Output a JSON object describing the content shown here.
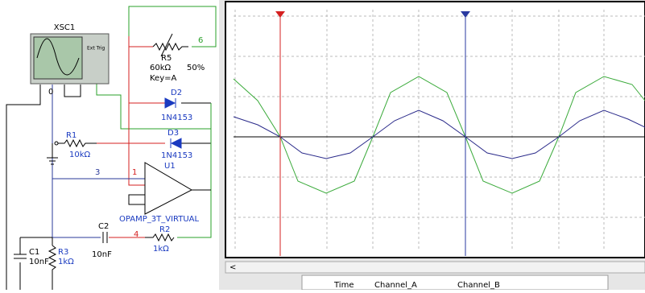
{
  "schematic": {
    "scope": {
      "label": "XSC1",
      "trigger": "Ext Trig"
    },
    "r5": {
      "name": "R5",
      "value": "60kΩ",
      "setting": "50%",
      "key": "Key=A",
      "node": "6"
    },
    "d2": {
      "name": "D2",
      "model": "1N4153"
    },
    "d3": {
      "name": "D3",
      "model": "1N4153"
    },
    "r1": {
      "name": "R1",
      "value": "10kΩ"
    },
    "ground_node": "0",
    "node3": "3",
    "node1": "1",
    "u1": {
      "name": "U1",
      "model": "OPAMP_3T_VIRTUAL"
    },
    "c2": {
      "name": "C2",
      "value": "10nF"
    },
    "node4": "4",
    "r2": {
      "name": "R2",
      "value": "1kΩ"
    },
    "c1": {
      "name": "C1",
      "value": "10nF"
    },
    "r3": {
      "name": "R3",
      "value": "1kΩ"
    }
  },
  "scope_panel": {
    "scroll_left": "<",
    "columns": [
      "Time",
      "Channel_A",
      "Channel_B"
    ]
  }
}
